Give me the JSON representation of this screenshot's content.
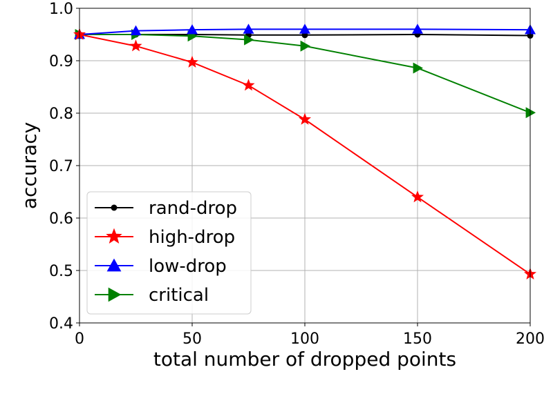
{
  "chart_data": {
    "type": "line",
    "xlabel": "total number of dropped points",
    "ylabel": "accuracy",
    "xlim": [
      0,
      200
    ],
    "ylim": [
      0.4,
      1.0
    ],
    "x_ticks": [
      0,
      50,
      100,
      150,
      200
    ],
    "y_ticks": [
      0.4,
      0.5,
      0.6,
      0.7,
      0.8,
      0.9,
      1.0
    ],
    "x_tick_labels": [
      "0",
      "50",
      "100",
      "150",
      "200"
    ],
    "y_tick_labels": [
      "0.4",
      "0.5",
      "0.6",
      "0.7",
      "0.8",
      "0.9",
      "1.0"
    ],
    "grid": true,
    "legend_position": "lower-left",
    "series": [
      {
        "name": "rand-drop",
        "color": "#000000",
        "marker": "circle",
        "x": [
          0,
          25,
          50,
          75,
          100,
          150,
          200
        ],
        "y": [
          0.95,
          0.95,
          0.95,
          0.949,
          0.949,
          0.95,
          0.948
        ]
      },
      {
        "name": "high-drop",
        "color": "#ff0000",
        "marker": "star",
        "x": [
          0,
          25,
          50,
          75,
          100,
          150,
          200
        ],
        "y": [
          0.95,
          0.928,
          0.897,
          0.853,
          0.788,
          0.64,
          0.493
        ]
      },
      {
        "name": "low-drop",
        "color": "#0000ff",
        "marker": "triangle-up",
        "x": [
          0,
          25,
          50,
          75,
          100,
          150,
          200
        ],
        "y": [
          0.95,
          0.957,
          0.959,
          0.96,
          0.96,
          0.96,
          0.959
        ]
      },
      {
        "name": "critical",
        "color": "#008000",
        "marker": "triangle-right",
        "x": [
          0,
          25,
          50,
          75,
          100,
          150,
          200
        ],
        "y": [
          0.95,
          0.95,
          0.947,
          0.94,
          0.928,
          0.886,
          0.801
        ]
      }
    ]
  }
}
